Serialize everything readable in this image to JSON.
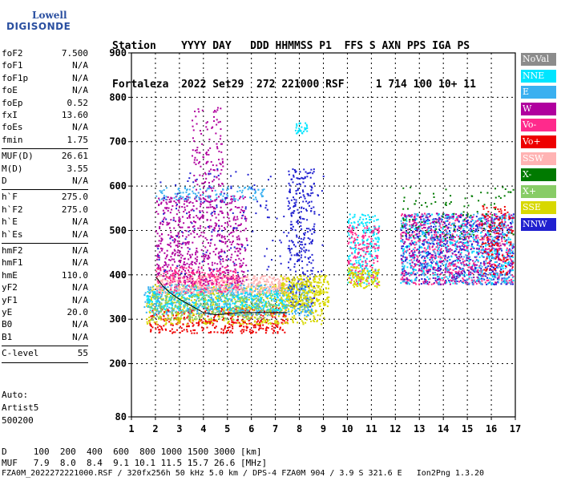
{
  "logo": {
    "line1": "Lowell",
    "line2": "DIGISONDE"
  },
  "header": {
    "line1": "Station    YYYY DAY   DDD HHMMSS P1  FFS S AXN PPS IGA PS",
    "line2": "Fortaleza  2022 Set29  272 221000 RSF     1 714 100 10+ 11"
  },
  "params": [
    {
      "label": "foF2",
      "value": "7.500"
    },
    {
      "label": "foF1",
      "value": "N/A"
    },
    {
      "label": "foF1p",
      "value": "N/A"
    },
    {
      "label": "foE",
      "value": "N/A"
    },
    {
      "label": "foEp",
      "value": "0.52"
    },
    {
      "label": "fxI",
      "value": "13.60"
    },
    {
      "label": "foEs",
      "value": "N/A"
    },
    {
      "label": "fmin",
      "value": "1.75"
    },
    {
      "label": "MUF(D)",
      "value": "26.61"
    },
    {
      "label": "M(D)",
      "value": "3.55"
    },
    {
      "label": "D",
      "value": "N/A"
    },
    {
      "label": "h`F",
      "value": "275.0"
    },
    {
      "label": "h`F2",
      "value": "275.0"
    },
    {
      "label": "h`E",
      "value": "N/A"
    },
    {
      "label": "h`Es",
      "value": "N/A"
    },
    {
      "label": "hmF2",
      "value": "N/A"
    },
    {
      "label": "hmF1",
      "value": "N/A"
    },
    {
      "label": "hmE",
      "value": "110.0"
    },
    {
      "label": "yF2",
      "value": "N/A"
    },
    {
      "label": "yF1",
      "value": "N/A"
    },
    {
      "label": "yE",
      "value": "20.0"
    },
    {
      "label": "B0",
      "value": "N/A"
    },
    {
      "label": "B1",
      "value": "N/A"
    },
    {
      "label": "C-level",
      "value": "55"
    }
  ],
  "auto": {
    "line1": "Auto:",
    "line2": "Artist5",
    "line3": "500200"
  },
  "legend": [
    {
      "label": "NoVal",
      "bg": "#8c8c8c",
      "fg": "#ffffff"
    },
    {
      "label": "NNE",
      "bg": "#00e5ff",
      "fg": "#ffffff"
    },
    {
      "label": "E",
      "bg": "#3ab0f0",
      "fg": "#ffffff"
    },
    {
      "label": "W",
      "bg": "#b0009e",
      "fg": "#ffffff"
    },
    {
      "label": "Vo-",
      "bg": "#ff2a8c",
      "fg": "#ffffff"
    },
    {
      "label": "Vo+",
      "bg": "#ee0000",
      "fg": "#ffffff"
    },
    {
      "label": "SSW",
      "bg": "#ffb3b3",
      "fg": "#ffffff"
    },
    {
      "label": "X-",
      "bg": "#007a00",
      "fg": "#ffffff"
    },
    {
      "label": "X+",
      "bg": "#88cc66",
      "fg": "#ffffff"
    },
    {
      "label": "SSE",
      "bg": "#d8d800",
      "fg": "#ffffff"
    },
    {
      "label": "NNW",
      "bg": "#2020d0",
      "fg": "#ffffff"
    }
  ],
  "footer": {
    "line1": "D     100  200  400  600  800 1000 1500 3000 [km]",
    "line2": "MUF   7.9  8.0  8.4  9.1 10.1 11.5 15.7 26.6 [MHz]",
    "line3": "FZA0M_2022272221000.RSF / 320fx256h 50 kHz 5.0 km / DPS-4 FZA0M 904 / 3.9 S 321.6 E   Ion2Png 1.3.20"
  },
  "chart_data": {
    "type": "scatter",
    "title": "",
    "xlabel": "",
    "ylabel": "",
    "xlim": [
      1,
      17
    ],
    "ylim": [
      80,
      900
    ],
    "xticks": [
      1,
      2,
      3,
      4,
      5,
      6,
      7,
      8,
      9,
      10,
      11,
      12,
      13,
      14,
      15,
      16,
      17
    ],
    "yticks": [
      80,
      200,
      300,
      400,
      500,
      600,
      700,
      800,
      900
    ],
    "grid": true,
    "legend_position": "right",
    "trace": {
      "x": [
        2.0,
        2.1,
        2.3,
        2.6,
        3.0,
        3.5,
        4.0,
        4.5,
        5.0,
        5.5,
        6.0,
        6.5,
        7.0,
        7.5
      ],
      "y": [
        395,
        390,
        375,
        360,
        345,
        330,
        315,
        310,
        312,
        315,
        315,
        315,
        315,
        315
      ]
    },
    "clusters": [
      {
        "series": "Vo+",
        "color": "#ee0000",
        "x": [
          1.7,
          7.5
        ],
        "y": [
          270,
          330
        ],
        "n": 420
      },
      {
        "series": "SSE",
        "color": "#d8d800",
        "x": [
          1.6,
          9.0
        ],
        "y": [
          290,
          380
        ],
        "n": 700
      },
      {
        "series": "E",
        "color": "#3ab0f0",
        "x": [
          1.5,
          8.5
        ],
        "y": [
          310,
          380
        ],
        "n": 700
      },
      {
        "series": "NNE",
        "color": "#00e5ff",
        "x": [
          1.6,
          7.5
        ],
        "y": [
          320,
          370
        ],
        "n": 300
      },
      {
        "series": "X+",
        "color": "#88cc66",
        "x": [
          1.7,
          7.0
        ],
        "y": [
          300,
          360
        ],
        "n": 250
      },
      {
        "series": "SSW",
        "color": "#ffb3b3",
        "x": [
          2.0,
          7.5
        ],
        "y": [
          360,
          400
        ],
        "n": 450
      },
      {
        "series": "W",
        "color": "#b0009e",
        "x": [
          2.0,
          5.8
        ],
        "y": [
          380,
          580
        ],
        "n": 650
      },
      {
        "series": "W",
        "color": "#b0009e",
        "x": [
          3.5,
          4.8
        ],
        "y": [
          560,
          780
        ],
        "n": 140
      },
      {
        "series": "Vo-",
        "color": "#ff2a8c",
        "x": [
          2.0,
          5.5
        ],
        "y": [
          360,
          420
        ],
        "n": 200
      },
      {
        "series": "E",
        "color": "#3ab0f0",
        "x": [
          2.0,
          6.5
        ],
        "y": [
          570,
          600
        ],
        "n": 120
      },
      {
        "series": "NNW",
        "color": "#2020d0",
        "x": [
          7.5,
          8.6
        ],
        "y": [
          330,
          640
        ],
        "n": 260
      },
      {
        "series": "NNE",
        "color": "#00e5ff",
        "x": [
          7.8,
          8.3
        ],
        "y": [
          720,
          745
        ],
        "n": 30
      },
      {
        "series": "SSE",
        "color": "#d8d800",
        "x": [
          7.2,
          9.2
        ],
        "y": [
          330,
          400
        ],
        "n": 260
      },
      {
        "series": "NNE",
        "color": "#00e5ff",
        "x": [
          10.0,
          11.3
        ],
        "y": [
          380,
          540
        ],
        "n": 220
      },
      {
        "series": "Vo-",
        "color": "#ff2a8c",
        "x": [
          10.0,
          11.3
        ],
        "y": [
          380,
          520
        ],
        "n": 160
      },
      {
        "series": "SSE",
        "color": "#d8d800",
        "x": [
          10.0,
          11.3
        ],
        "y": [
          370,
          420
        ],
        "n": 120
      },
      {
        "series": "NNW",
        "color": "#2020d0",
        "x": [
          12.2,
          16.9
        ],
        "y": [
          380,
          540
        ],
        "n": 650
      },
      {
        "series": "Vo-",
        "color": "#ff2a8c",
        "x": [
          12.2,
          16.9
        ],
        "y": [
          380,
          540
        ],
        "n": 500
      },
      {
        "series": "E",
        "color": "#3ab0f0",
        "x": [
          12.2,
          16.9
        ],
        "y": [
          380,
          540
        ],
        "n": 420
      },
      {
        "series": "NNE",
        "color": "#00e5ff",
        "x": [
          12.2,
          16.9
        ],
        "y": [
          380,
          540
        ],
        "n": 260
      },
      {
        "series": "X-",
        "color": "#007a00",
        "x": [
          12.2,
          16.9
        ],
        "y": [
          480,
          600
        ],
        "n": 110
      },
      {
        "series": "W",
        "color": "#b0009e",
        "x": [
          12.2,
          16.9
        ],
        "y": [
          380,
          540
        ],
        "n": 260
      },
      {
        "series": "Vo+",
        "color": "#ee0000",
        "x": [
          15.5,
          16.9
        ],
        "y": [
          400,
          560
        ],
        "n": 120
      },
      {
        "series": "NNW",
        "color": "#2020d0",
        "x": [
          2.0,
          9.0
        ],
        "y": [
          400,
          640
        ],
        "n": 160
      }
    ]
  }
}
